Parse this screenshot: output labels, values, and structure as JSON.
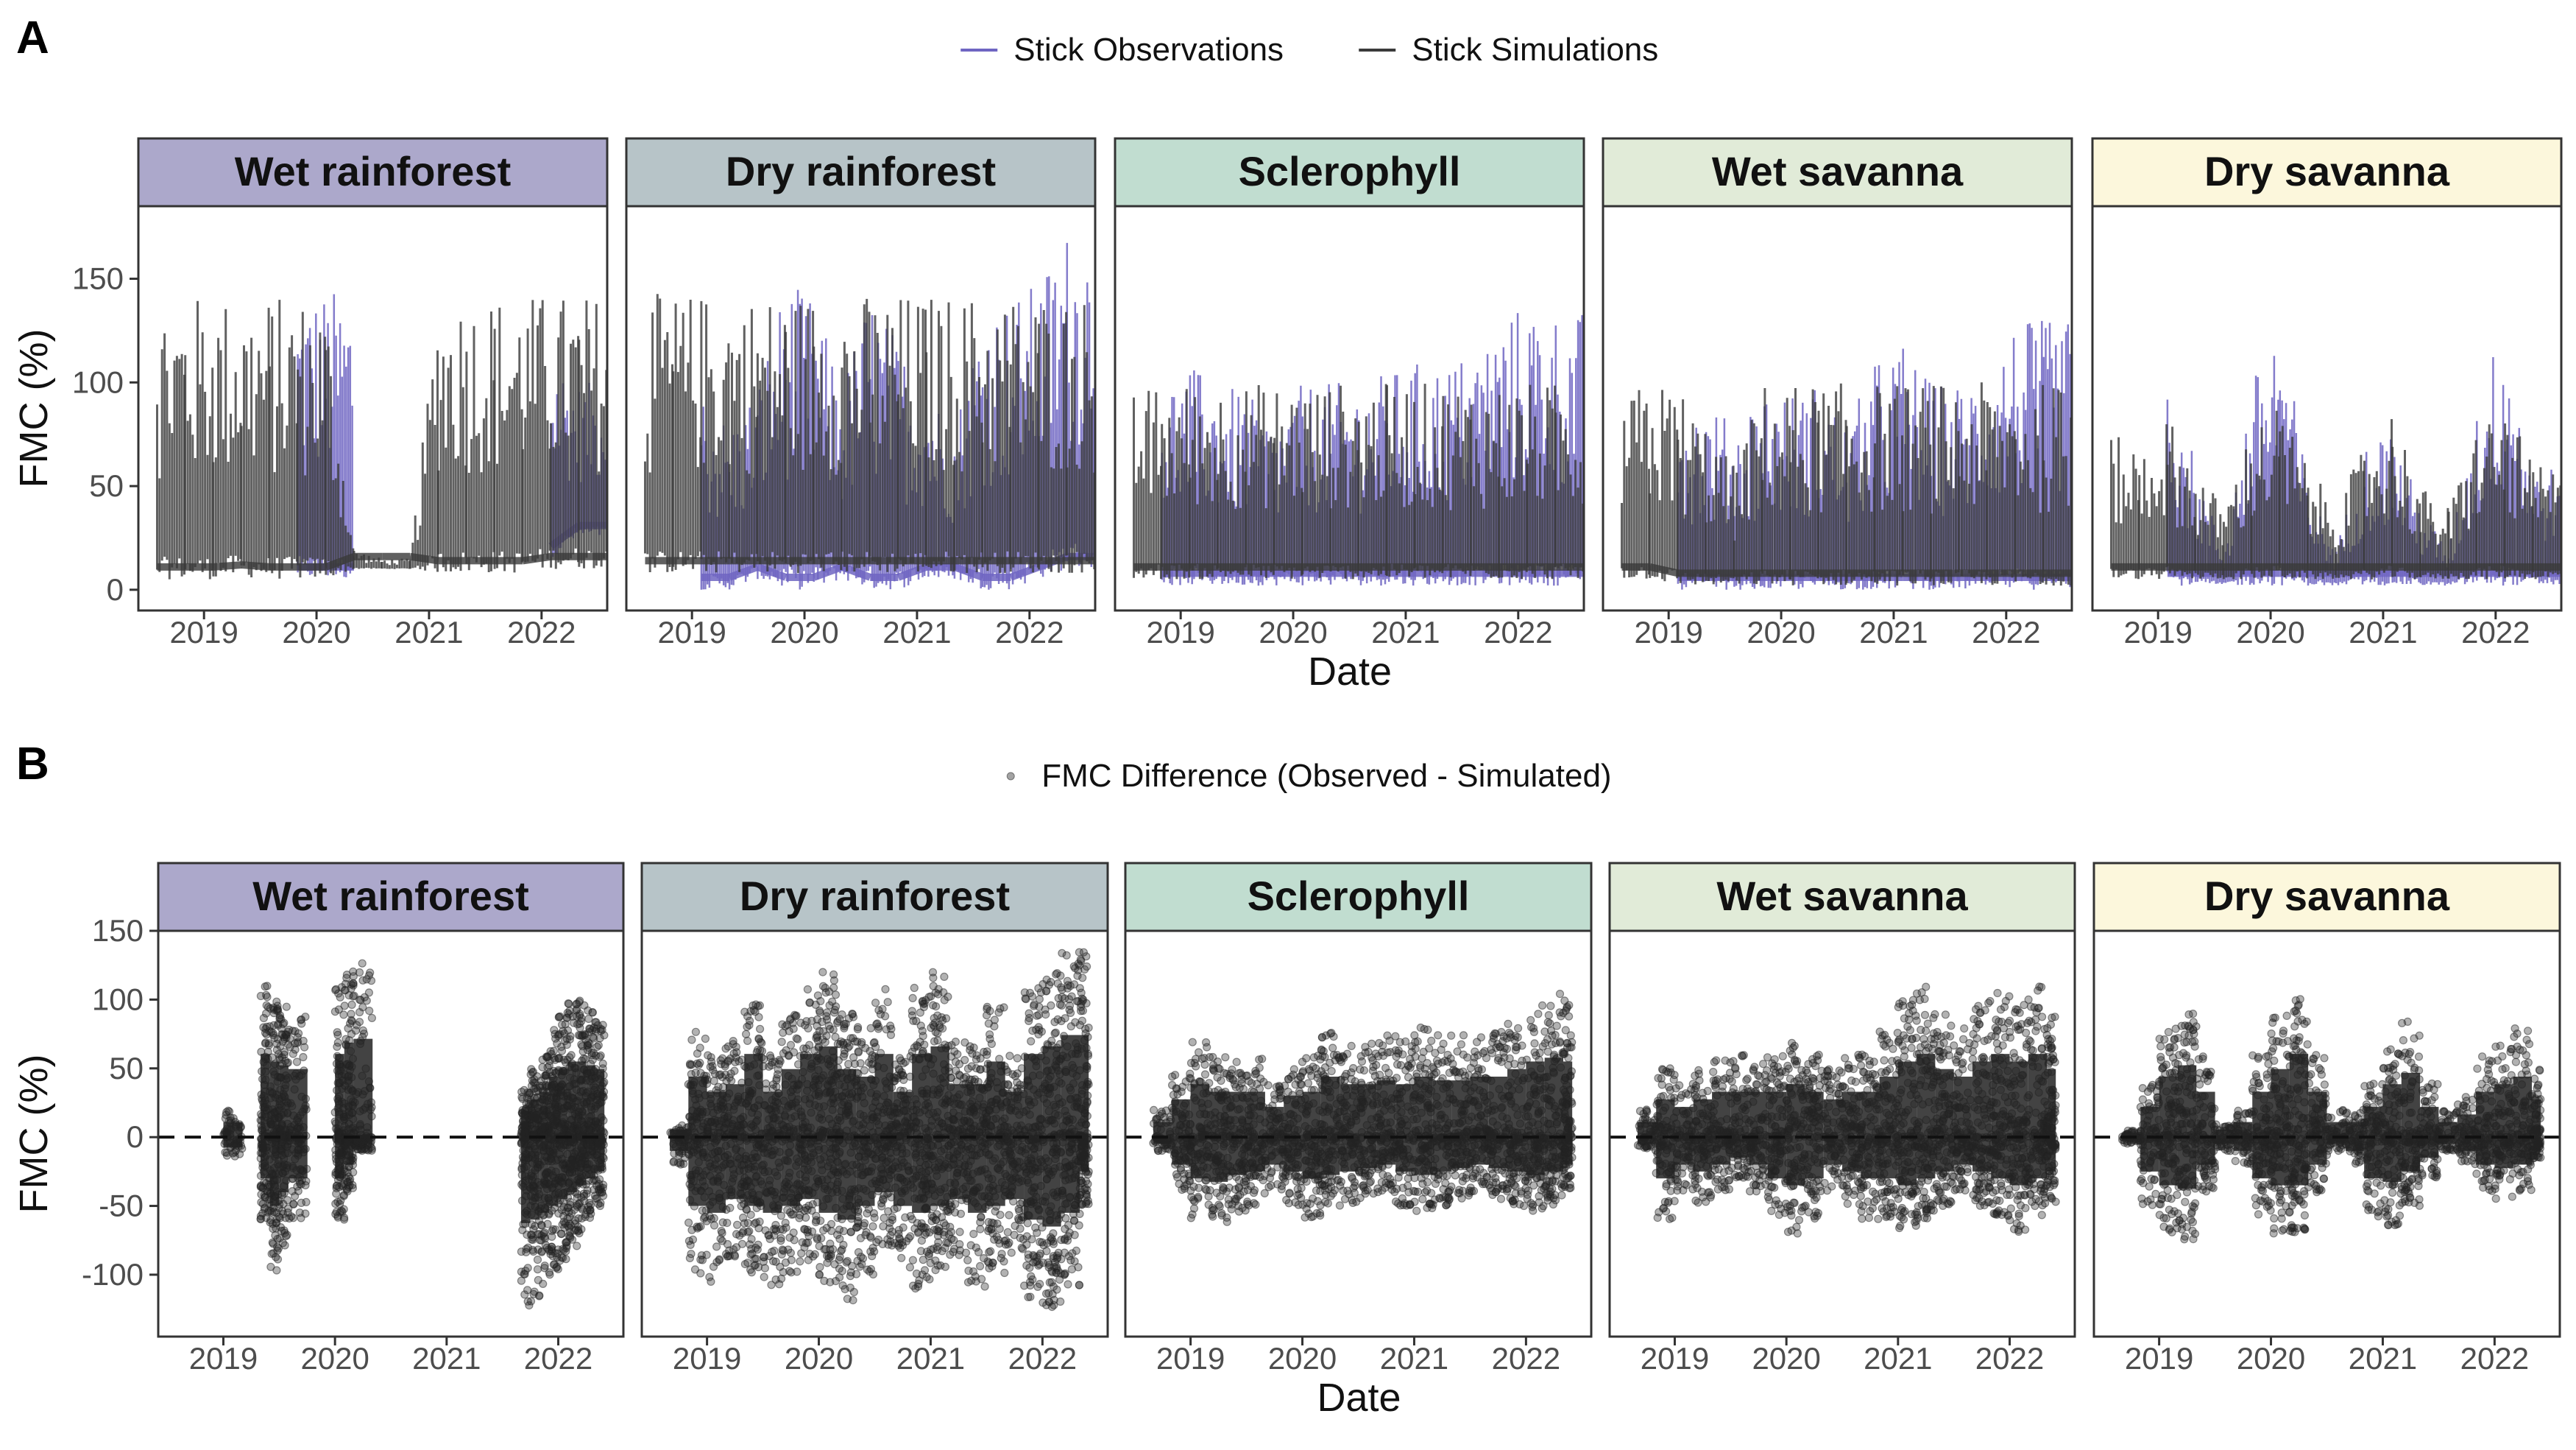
{
  "figure": {
    "panels": [
      {
        "letter": "A",
        "legend": [
          {
            "label": "Stick Observations",
            "color": "#6f65c2",
            "glyph": "line"
          },
          {
            "label": "Stick Simulations",
            "color": "#3a3a3a",
            "glyph": "line"
          }
        ],
        "xlabel": "Date",
        "ylabel": "FMC (%)"
      },
      {
        "letter": "B",
        "legend": [
          {
            "label": "FMC Difference (Observed - Simulated)",
            "color": "#333333",
            "glyph": "point"
          }
        ],
        "xlabel": "Date",
        "ylabel": "FMC (%)"
      }
    ]
  },
  "facets": [
    {
      "name": "Wet rainforest",
      "color": "#aca8cb"
    },
    {
      "name": "Dry rainforest",
      "color": "#b7c4c8"
    },
    {
      "name": "Sclerophyll",
      "color": "#c1ddd0"
    },
    {
      "name": "Wet savanna",
      "color": "#e1ebd8"
    },
    {
      "name": "Dry savanna",
      "color": "#fcf7dc"
    }
  ],
  "chart_data": [
    {
      "type": "line",
      "title": "",
      "xlabel": "Date",
      "ylabel": "FMC (%)",
      "ylim": [
        -10,
        185
      ],
      "yticks": [
        0,
        50,
        100,
        150
      ],
      "xlim": [
        "2018-06-01",
        "2022-08-01"
      ],
      "xticks": [
        "2019",
        "2020",
        "2021",
        "2022"
      ],
      "grid": false,
      "legend_position": "top",
      "series_names": [
        "Stick Observations",
        "Stick Simulations"
      ],
      "facets": [
        {
          "name": "Wet rainforest",
          "x": [
            "2018-08",
            "2018-11",
            "2019-02",
            "2019-05",
            "2019-08",
            "2019-11",
            "2020-02",
            "2020-05",
            "2020-08",
            "2020-11",
            "2021-02",
            "2021-05",
            "2021-08",
            "2021-11",
            "2022-02",
            "2022-05"
          ],
          "simulations": {
            "high": [
              142,
              142,
              142,
              142,
              142,
              142,
              142,
              20,
              15,
              15,
              143,
              143,
              143,
              143,
              143,
              143
            ],
            "low": [
              5,
              5,
              5,
              6,
              5,
              5,
              5,
              10,
              10,
              10,
              8,
              8,
              8,
              8,
              10,
              10
            ]
          },
          "observations": {
            "high": [
              null,
              null,
              null,
              null,
              null,
              145,
              145,
              null,
              null,
              null,
              null,
              null,
              null,
              null,
              120,
              100
            ],
            "low": [
              null,
              null,
              null,
              null,
              null,
              5,
              5,
              null,
              null,
              null,
              null,
              null,
              null,
              null,
              15,
              25
            ]
          }
        },
        {
          "name": "Dry rainforest",
          "x": [
            "2018-08",
            "2018-11",
            "2019-02",
            "2019-05",
            "2019-08",
            "2019-11",
            "2020-02",
            "2020-05",
            "2020-08",
            "2020-11",
            "2021-02",
            "2021-05",
            "2021-08",
            "2021-11",
            "2022-02",
            "2022-05"
          ],
          "simulations": {
            "high": [
              143,
              143,
              143,
              143,
              143,
              143,
              143,
              143,
              143,
              143,
              143,
              143,
              143,
              143,
              143,
              143
            ],
            "low": [
              8,
              8,
              8,
              8,
              8,
              8,
              8,
              8,
              8,
              8,
              8,
              8,
              8,
              8,
              8,
              8
            ]
          },
          "observations": {
            "high": [
              null,
              null,
              100,
              80,
              100,
              150,
              140,
              100,
              145,
              120,
              100,
              80,
              140,
              140,
              150,
              175
            ],
            "low": [
              null,
              null,
              0,
              0,
              5,
              0,
              0,
              5,
              0,
              0,
              5,
              5,
              0,
              0,
              5,
              10
            ]
          }
        },
        {
          "name": "Sclerophyll",
          "x": [
            "2018-08",
            "2018-11",
            "2019-02",
            "2019-05",
            "2019-08",
            "2019-11",
            "2020-02",
            "2020-05",
            "2020-08",
            "2020-11",
            "2021-02",
            "2021-05",
            "2021-08",
            "2021-11",
            "2022-02",
            "2022-05"
          ],
          "simulations": {
            "high": [
              95,
              100,
              100,
              100,
              100,
              100,
              100,
              100,
              100,
              100,
              100,
              100,
              100,
              100,
              100,
              100
            ],
            "low": [
              5,
              5,
              5,
              5,
              5,
              5,
              5,
              5,
              5,
              5,
              5,
              5,
              5,
              5,
              5,
              5
            ]
          },
          "observations": {
            "high": [
              null,
              100,
              108,
              100,
              95,
              80,
              100,
              100,
              100,
              105,
              110,
              110,
              115,
              130,
              140,
              135
            ],
            "low": [
              null,
              2,
              2,
              2,
              2,
              2,
              2,
              2,
              2,
              2,
              2,
              2,
              2,
              2,
              2,
              2
            ]
          }
        },
        {
          "name": "Wet savanna",
          "x": [
            "2018-08",
            "2018-11",
            "2019-02",
            "2019-05",
            "2019-08",
            "2019-11",
            "2020-02",
            "2020-05",
            "2020-08",
            "2020-11",
            "2021-02",
            "2021-05",
            "2021-08",
            "2021-11",
            "2022-02",
            "2022-05"
          ],
          "simulations": {
            "high": [
              95,
              100,
              100,
              80,
              60,
              100,
              100,
              100,
              100,
              100,
              100,
              100,
              100,
              100,
              100,
              100
            ],
            "low": [
              5,
              5,
              2,
              2,
              2,
              2,
              2,
              2,
              2,
              2,
              2,
              2,
              2,
              2,
              2,
              2
            ]
          },
          "observations": {
            "high": [
              null,
              null,
              90,
              90,
              80,
              100,
              95,
              100,
              80,
              110,
              120,
              100,
              100,
              110,
              130,
              130
            ],
            "low": [
              null,
              null,
              0,
              0,
              0,
              0,
              0,
              0,
              0,
              0,
              0,
              0,
              0,
              0,
              0,
              0
            ]
          }
        },
        {
          "name": "Dry savanna",
          "x": [
            "2018-08",
            "2018-11",
            "2019-02",
            "2019-05",
            "2019-08",
            "2019-11",
            "2020-02",
            "2020-05",
            "2020-08",
            "2020-11",
            "2021-02",
            "2021-05",
            "2021-08",
            "2021-11",
            "2022-02",
            "2022-05"
          ],
          "simulations": {
            "high": [
              75,
              70,
              85,
              60,
              40,
              80,
              90,
              60,
              40,
              70,
              90,
              50,
              40,
              80,
              90,
              60
            ],
            "low": [
              5,
              5,
              5,
              5,
              5,
              5,
              5,
              5,
              5,
              5,
              5,
              5,
              5,
              5,
              5,
              5
            ]
          },
          "observations": {
            "high": [
              null,
              null,
              120,
              60,
              20,
              100,
              135,
              50,
              20,
              70,
              80,
              40,
              20,
              90,
              135,
              60
            ],
            "low": [
              null,
              null,
              2,
              2,
              2,
              2,
              2,
              2,
              2,
              2,
              2,
              2,
              2,
              2,
              2,
              2
            ]
          }
        }
      ]
    },
    {
      "type": "scatter",
      "title": "",
      "xlabel": "Date",
      "ylabel": "FMC (%)",
      "ylim": [
        -145,
        150
      ],
      "yticks": [
        -100,
        -50,
        0,
        50,
        100,
        150
      ],
      "xlim": [
        "2018-06-01",
        "2022-08-01"
      ],
      "xticks": [
        "2019",
        "2020",
        "2021",
        "2022"
      ],
      "grid": false,
      "reference_line": {
        "y": 0,
        "style": "dashed"
      },
      "legend_position": "top",
      "series_names": [
        "FMC Difference (Observed - Simulated)"
      ],
      "facets": [
        {
          "name": "Wet rainforest",
          "x": [
            "2019-01",
            "2019-05",
            "2019-06",
            "2019-07",
            "2019-08",
            "2020-01",
            "2020-02",
            "2020-03",
            "2021-09",
            "2021-10",
            "2021-11",
            "2021-12",
            "2022-01",
            "2022-02",
            "2022-03",
            "2022-04",
            "2022-05"
          ],
          "max": [
            20,
            110,
            100,
            95,
            90,
            110,
            125,
            130,
            35,
            50,
            60,
            80,
            90,
            100,
            100,
            95,
            90
          ],
          "min": [
            -15,
            -60,
            -100,
            -80,
            -60,
            -60,
            -40,
            -10,
            -125,
            -120,
            -110,
            -100,
            -90,
            -80,
            -70,
            -60,
            -50
          ]
        },
        {
          "name": "Dry rainforest",
          "x": [
            "2018-09",
            "2018-11",
            "2019-01",
            "2019-03",
            "2019-05",
            "2019-07",
            "2019-09",
            "2019-11",
            "2020-01",
            "2020-03",
            "2020-05",
            "2020-07",
            "2020-09",
            "2020-11",
            "2021-01",
            "2021-03",
            "2021-05",
            "2021-07",
            "2021-09",
            "2021-11",
            "2022-01",
            "2022-03",
            "2022-05"
          ],
          "max": [
            10,
            80,
            60,
            70,
            110,
            60,
            90,
            110,
            120,
            90,
            80,
            110,
            60,
            110,
            120,
            70,
            70,
            100,
            60,
            110,
            120,
            135,
            135
          ],
          "min": [
            -20,
            -100,
            -110,
            -90,
            -100,
            -110,
            -100,
            -90,
            -110,
            -120,
            -100,
            -80,
            -100,
            -110,
            -100,
            -90,
            -110,
            -100,
            -90,
            -120,
            -130,
            -110,
            -50
          ]
        },
        {
          "name": "Sclerophyll",
          "x": [
            "2018-09",
            "2018-11",
            "2019-01",
            "2019-03",
            "2019-05",
            "2019-07",
            "2019-09",
            "2019-11",
            "2020-01",
            "2020-03",
            "2020-05",
            "2020-07",
            "2020-09",
            "2020-11",
            "2021-01",
            "2021-03",
            "2021-05",
            "2021-07",
            "2021-09",
            "2021-11",
            "2022-01",
            "2022-03",
            "2022-05"
          ],
          "max": [
            20,
            50,
            70,
            60,
            60,
            60,
            40,
            55,
            60,
            80,
            70,
            70,
            75,
            70,
            80,
            75,
            75,
            80,
            80,
            90,
            100,
            105,
            100
          ],
          "min": [
            -10,
            -40,
            -60,
            -65,
            -55,
            -50,
            -40,
            -50,
            -60,
            -55,
            -50,
            -45,
            -40,
            -50,
            -55,
            -50,
            -45,
            -40,
            -45,
            -50,
            -55,
            -50,
            -40
          ]
        },
        {
          "name": "Wet savanna",
          "x": [
            "2018-09",
            "2018-11",
            "2019-01",
            "2019-03",
            "2019-05",
            "2019-07",
            "2019-09",
            "2019-11",
            "2020-01",
            "2020-03",
            "2020-05",
            "2020-07",
            "2020-09",
            "2020-11",
            "2021-01",
            "2021-03",
            "2021-05",
            "2021-07",
            "2021-09",
            "2021-11",
            "2022-01",
            "2022-03",
            "2022-05"
          ],
          "max": [
            20,
            50,
            40,
            50,
            60,
            60,
            60,
            60,
            70,
            60,
            50,
            60,
            60,
            80,
            100,
            110,
            90,
            80,
            100,
            110,
            100,
            110,
            90
          ],
          "min": [
            -10,
            -60,
            -40,
            -50,
            -40,
            -30,
            -40,
            -60,
            -70,
            -60,
            -40,
            -50,
            -60,
            -60,
            -70,
            -60,
            -50,
            -40,
            -50,
            -60,
            -70,
            -60,
            -50
          ]
        },
        {
          "name": "Dry savanna",
          "x": [
            "2018-09",
            "2018-11",
            "2019-01",
            "2019-03",
            "2019-05",
            "2019-07",
            "2019-09",
            "2019-11",
            "2020-01",
            "2020-03",
            "2020-05",
            "2020-07",
            "2020-09",
            "2020-11",
            "2021-01",
            "2021-03",
            "2021-05",
            "2021-07",
            "2021-09",
            "2021-11",
            "2022-01",
            "2022-03",
            "2022-05"
          ],
          "max": [
            5,
            40,
            80,
            95,
            60,
            10,
            20,
            60,
            90,
            110,
            60,
            20,
            20,
            40,
            70,
            85,
            40,
            20,
            30,
            60,
            70,
            80,
            50
          ],
          "min": [
            -5,
            -50,
            -70,
            -75,
            -40,
            -10,
            -20,
            -60,
            -70,
            -70,
            -40,
            -10,
            -20,
            -60,
            -65,
            -50,
            -30,
            -10,
            -20,
            -40,
            -45,
            -40,
            -20
          ]
        }
      ]
    }
  ]
}
